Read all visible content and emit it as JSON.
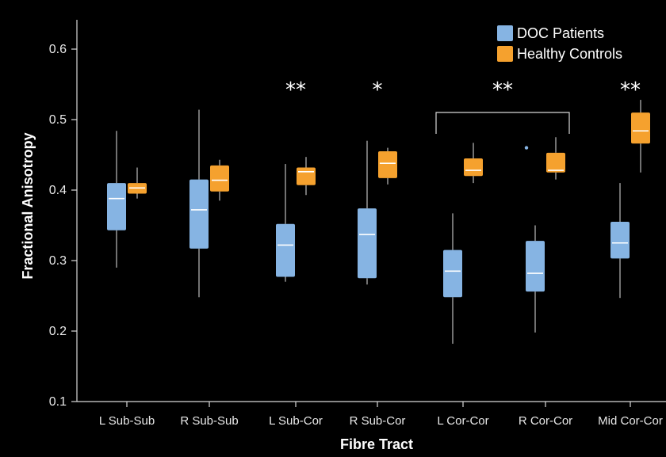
{
  "chart_data": {
    "type": "box",
    "xlabel": "Fibre Tract",
    "ylabel": "Fractional Anisotropy",
    "ylim": [
      0.1,
      0.65
    ],
    "yticks": [
      0.1,
      0.2,
      0.3,
      0.4,
      0.5,
      0.6
    ],
    "ytick_labels": [
      "0.1",
      "0.2",
      "0.3",
      "0.4",
      "0.5",
      "0.6"
    ],
    "grid": false,
    "legend_position": "top-right",
    "categories": [
      "L Sub-Sub",
      "R Sub-Sub",
      "L Sub-Cor",
      "R Sub-Cor",
      "L Cor-Cor",
      "R Cor-Cor",
      "Mid Cor-Cor"
    ],
    "series": [
      {
        "name": "DOC Patients",
        "color": "#86b4e3",
        "boxes": [
          {
            "min": 0.29,
            "q1": 0.343,
            "median": 0.388,
            "q3": 0.41,
            "max": 0.484
          },
          {
            "min": 0.248,
            "q1": 0.317,
            "median": 0.372,
            "q3": 0.415,
            "max": 0.514
          },
          {
            "min": 0.27,
            "q1": 0.277,
            "median": 0.322,
            "q3": 0.352,
            "max": 0.437
          },
          {
            "min": 0.266,
            "q1": 0.275,
            "median": 0.337,
            "q3": 0.374,
            "max": 0.47
          },
          {
            "min": 0.182,
            "q1": 0.248,
            "median": 0.285,
            "q3": 0.315,
            "max": 0.367
          },
          {
            "min": 0.198,
            "q1": 0.256,
            "median": 0.282,
            "q3": 0.328,
            "max": 0.35
          },
          {
            "min": 0.247,
            "q1": 0.303,
            "median": 0.325,
            "q3": 0.355,
            "max": 0.41
          }
        ],
        "outliers": [
          {
            "category": "R Cor-Cor",
            "value": 0.46
          }
        ]
      },
      {
        "name": "Healthy Controls",
        "color": "#f5a12e",
        "boxes": [
          {
            "min": 0.388,
            "q1": 0.395,
            "median": 0.403,
            "q3": 0.41,
            "max": 0.432
          },
          {
            "min": 0.385,
            "q1": 0.398,
            "median": 0.414,
            "q3": 0.435,
            "max": 0.443
          },
          {
            "min": 0.393,
            "q1": 0.407,
            "median": 0.426,
            "q3": 0.432,
            "max": 0.447
          },
          {
            "min": 0.408,
            "q1": 0.417,
            "median": 0.438,
            "q3": 0.455,
            "max": 0.46
          },
          {
            "min": 0.41,
            "q1": 0.42,
            "median": 0.428,
            "q3": 0.445,
            "max": 0.467
          },
          {
            "min": 0.415,
            "q1": 0.425,
            "median": 0.428,
            "q3": 0.453,
            "max": 0.475
          },
          {
            "min": 0.425,
            "q1": 0.466,
            "median": 0.484,
            "q3": 0.51,
            "max": 0.528
          }
        ],
        "outliers": []
      }
    ],
    "annotations": [
      {
        "text": "**",
        "category": "L Sub-Cor"
      },
      {
        "text": "*",
        "category": "R Sub-Cor"
      },
      {
        "text": "**",
        "bracket": [
          "L Cor-Cor",
          "R Cor-Cor"
        ]
      },
      {
        "text": "**",
        "category": "Mid Cor-Cor"
      }
    ]
  }
}
